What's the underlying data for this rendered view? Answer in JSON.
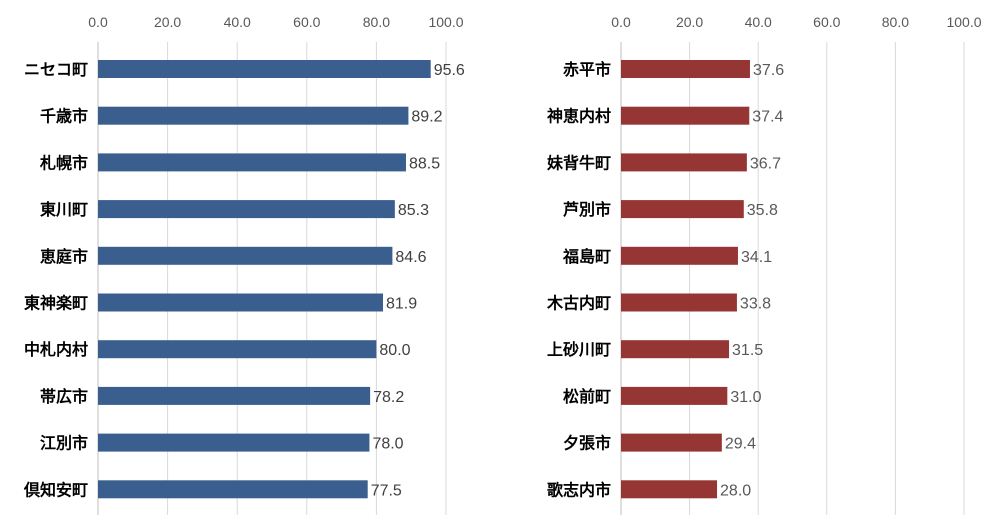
{
  "chart_data": [
    {
      "type": "bar",
      "orientation": "horizontal",
      "categories": [
        "ニセコ町",
        "千歳市",
        "札幌市",
        "東川町",
        "恵庭市",
        "東神楽町",
        "中札内村",
        "帯広市",
        "江別市",
        "倶知安町"
      ],
      "values": [
        95.6,
        89.2,
        88.5,
        85.3,
        84.6,
        81.9,
        80.0,
        78.2,
        78.0,
        77.5
      ],
      "value_labels": [
        "95.6",
        "89.2",
        "88.5",
        "85.3",
        "84.6",
        "81.9",
        "80.0",
        "78.2",
        "78.0",
        "77.5"
      ],
      "xlim": [
        0,
        100
      ],
      "ticks": [
        "0.0",
        "20.0",
        "40.0",
        "60.0",
        "80.0",
        "100.0"
      ],
      "axis_position": "top",
      "grid": true,
      "color": "#3A5F8F",
      "label_color": "#404040"
    },
    {
      "type": "bar",
      "orientation": "horizontal",
      "categories": [
        "赤平市",
        "神恵内村",
        "妹背牛町",
        "芦別市",
        "福島町",
        "木古内町",
        "上砂川町",
        "松前町",
        "夕張市",
        "歌志内市"
      ],
      "values": [
        37.6,
        37.4,
        36.7,
        35.8,
        34.1,
        33.8,
        31.5,
        31.0,
        29.4,
        28.0
      ],
      "value_labels": [
        "37.6",
        "37.4",
        "36.7",
        "35.8",
        "34.1",
        "33.8",
        "31.5",
        "31.0",
        "29.4",
        "28.0"
      ],
      "xlim": [
        0,
        100
      ],
      "ticks": [
        "0.0",
        "20.0",
        "40.0",
        "60.0",
        "80.0",
        "100.0"
      ],
      "axis_position": "top",
      "grid": true,
      "color": "#963634",
      "label_color": "#595959"
    }
  ]
}
